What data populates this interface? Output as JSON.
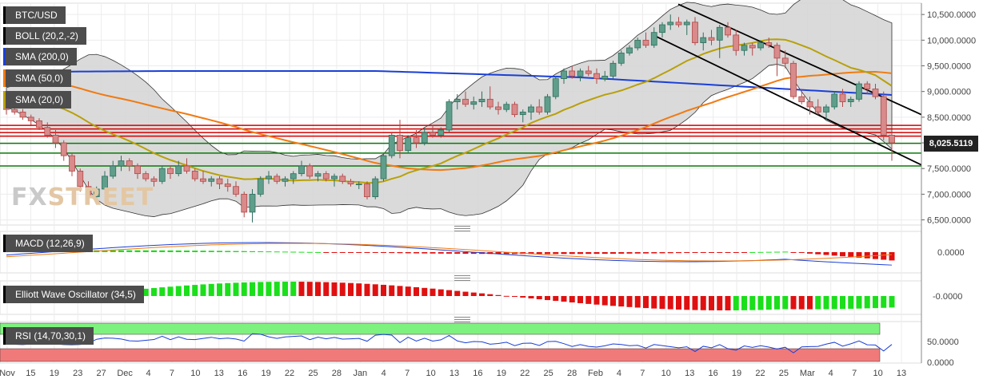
{
  "chart_data": {
    "type": "candlestick",
    "symbol": "BTC/USD",
    "price_axis": {
      "ticks": [
        "10,500.0000",
        "10,000.0000",
        "9,500.0000",
        "9,000.0000",
        "8,500.0000",
        "8,000.0000",
        "7,500.0000",
        "7,000.0000",
        "6,500.0000"
      ],
      "range": [
        6400,
        10720
      ],
      "current_price": "8,025.5119"
    },
    "x_axis": {
      "ticks": [
        "Nov",
        "15",
        "19",
        "23",
        "27",
        "Dec",
        "4",
        "7",
        "10",
        "13",
        "16",
        "19",
        "22",
        "25",
        "28",
        "Jan",
        "4",
        "7",
        "10",
        "13",
        "16",
        "19",
        "22",
        "25",
        "28",
        "Feb",
        "4",
        "7",
        "10",
        "13",
        "16",
        "19",
        "22",
        "25",
        "Mar",
        "4",
        "7",
        "10",
        "13"
      ]
    },
    "indicators": {
      "boll": "BOLL (20,2,-2)",
      "sma200": "SMA (200,0)",
      "sma50": "SMA (50,0)",
      "sma20": "SMA (20,0)",
      "macd": "MACD (12,26,9)",
      "ewo": "Elliott Wave Oscillator (34,5)",
      "rsi": "RSI (14,70,30,1)"
    },
    "panes": {
      "macd_ticks": [
        "0.0000"
      ],
      "ewo_ticks": [
        "-0.0000"
      ],
      "rsi_ticks": [
        "50.0000",
        "0.0000"
      ]
    },
    "ohlc": [
      [
        8700,
        8750,
        8550,
        8650
      ],
      [
        8650,
        8700,
        8550,
        8600
      ],
      [
        8600,
        8660,
        8450,
        8500
      ],
      [
        8500,
        8550,
        8350,
        8430
      ],
      [
        8430,
        8480,
        8250,
        8300
      ],
      [
        8300,
        8400,
        8100,
        8150
      ],
      [
        8150,
        8250,
        7900,
        8000
      ],
      [
        8000,
        8050,
        7650,
        7750
      ],
      [
        7750,
        7800,
        7350,
        7450
      ],
      [
        7450,
        7500,
        7050,
        7150
      ],
      [
        7150,
        7250,
        6800,
        6950
      ],
      [
        6950,
        7150,
        6850,
        7100
      ],
      [
        7100,
        7450,
        7000,
        7350
      ],
      [
        7350,
        7650,
        7300,
        7550
      ],
      [
        7550,
        7750,
        7450,
        7650
      ],
      [
        7650,
        7700,
        7450,
        7550
      ],
      [
        7550,
        7600,
        7300,
        7400
      ],
      [
        7400,
        7450,
        7250,
        7300
      ],
      [
        7300,
        7350,
        7150,
        7250
      ],
      [
        7250,
        7550,
        7200,
        7500
      ],
      [
        7500,
        7550,
        7300,
        7400
      ],
      [
        7400,
        7650,
        7350,
        7550
      ],
      [
        7550,
        7700,
        7400,
        7450
      ],
      [
        7450,
        7500,
        7250,
        7300
      ],
      [
        7300,
        7450,
        7200,
        7250
      ],
      [
        7250,
        7350,
        7150,
        7300
      ],
      [
        7300,
        7350,
        7100,
        7200
      ],
      [
        7200,
        7300,
        7050,
        7150
      ],
      [
        7150,
        7250,
        6950,
        7000
      ],
      [
        7000,
        7050,
        6550,
        6650
      ],
      [
        6650,
        7100,
        6450,
        7000
      ],
      [
        7000,
        7350,
        6950,
        7300
      ],
      [
        7300,
        7450,
        7200,
        7350
      ],
      [
        7350,
        7400,
        7200,
        7250
      ],
      [
        7250,
        7350,
        7150,
        7300
      ],
      [
        7300,
        7450,
        7200,
        7400
      ],
      [
        7400,
        7650,
        7350,
        7550
      ],
      [
        7550,
        7600,
        7300,
        7350
      ],
      [
        7350,
        7450,
        7250,
        7400
      ],
      [
        7400,
        7450,
        7250,
        7300
      ],
      [
        7300,
        7400,
        7150,
        7350
      ],
      [
        7350,
        7400,
        7200,
        7250
      ],
      [
        7250,
        7300,
        7150,
        7200
      ],
      [
        7200,
        7250,
        7100,
        7200
      ],
      [
        7200,
        7250,
        6900,
        6950
      ],
      [
        6950,
        7350,
        6900,
        7300
      ],
      [
        7300,
        7800,
        7250,
        7750
      ],
      [
        7750,
        8200,
        7700,
        8150
      ],
      [
        8150,
        8450,
        7700,
        7850
      ],
      [
        7850,
        8150,
        7800,
        8100
      ],
      [
        8100,
        8250,
        7900,
        8000
      ],
      [
        8000,
        8300,
        7950,
        8200
      ],
      [
        8200,
        8350,
        8100,
        8150
      ],
      [
        8150,
        8300,
        8100,
        8250
      ],
      [
        8250,
        8850,
        8200,
        8800
      ],
      [
        8800,
        8950,
        8650,
        8850
      ],
      [
        8850,
        9000,
        8700,
        8750
      ],
      [
        8750,
        8900,
        8650,
        8800
      ],
      [
        8800,
        9000,
        8700,
        8850
      ],
      [
        8850,
        9100,
        8650,
        8700
      ],
      [
        8700,
        8800,
        8550,
        8650
      ],
      [
        8650,
        8800,
        8600,
        8750
      ],
      [
        8750,
        8800,
        8500,
        8550
      ],
      [
        8550,
        8650,
        8400,
        8600
      ],
      [
        8600,
        8750,
        8450,
        8700
      ],
      [
        8700,
        8850,
        8550,
        8600
      ],
      [
        8600,
        8950,
        8550,
        8900
      ],
      [
        8900,
        9300,
        8850,
        9250
      ],
      [
        9250,
        9450,
        9150,
        9400
      ],
      [
        9400,
        9500,
        9250,
        9300
      ],
      [
        9300,
        9450,
        9200,
        9400
      ],
      [
        9400,
        9500,
        9300,
        9350
      ],
      [
        9350,
        9450,
        9150,
        9250
      ],
      [
        9250,
        9400,
        9200,
        9300
      ],
      [
        9300,
        9600,
        9250,
        9550
      ],
      [
        9550,
        9800,
        9500,
        9750
      ],
      [
        9750,
        9900,
        9700,
        9850
      ],
      [
        9850,
        10050,
        9800,
        10000
      ],
      [
        10000,
        10150,
        9850,
        9900
      ],
      [
        9900,
        10250,
        9850,
        10150
      ],
      [
        10150,
        10350,
        10050,
        10300
      ],
      [
        10300,
        10500,
        10200,
        10350
      ],
      [
        10350,
        10450,
        10250,
        10300
      ],
      [
        10300,
        10400,
        10100,
        10350
      ],
      [
        10350,
        10450,
        9900,
        9950
      ],
      [
        9950,
        10150,
        9800,
        10050
      ],
      [
        10050,
        10200,
        9900,
        10000
      ],
      [
        10000,
        10300,
        9650,
        10250
      ],
      [
        10250,
        10350,
        10050,
        10100
      ],
      [
        10100,
        10200,
        9700,
        9800
      ],
      [
        9800,
        9950,
        9700,
        9900
      ],
      [
        9900,
        9950,
        9700,
        9850
      ],
      [
        9850,
        10000,
        9800,
        9950
      ],
      [
        9950,
        10050,
        9850,
        9900
      ],
      [
        9900,
        9950,
        9300,
        9650
      ],
      [
        9650,
        9800,
        9450,
        9550
      ],
      [
        9550,
        9600,
        8850,
        8900
      ],
      [
        8900,
        9050,
        8750,
        8800
      ],
      [
        8800,
        8900,
        8550,
        8700
      ],
      [
        8700,
        8850,
        8550,
        8600
      ],
      [
        8600,
        8750,
        8450,
        8700
      ],
      [
        8700,
        9000,
        8650,
        8950
      ],
      [
        8950,
        9050,
        8700,
        8800
      ],
      [
        8800,
        8900,
        8700,
        8850
      ],
      [
        8850,
        9200,
        8800,
        9150
      ],
      [
        9150,
        9200,
        8950,
        9050
      ],
      [
        9050,
        9150,
        8850,
        8900
      ],
      [
        8900,
        9000,
        8050,
        8150
      ],
      [
        8150,
        8200,
        7650,
        8000
      ]
    ]
  }
}
